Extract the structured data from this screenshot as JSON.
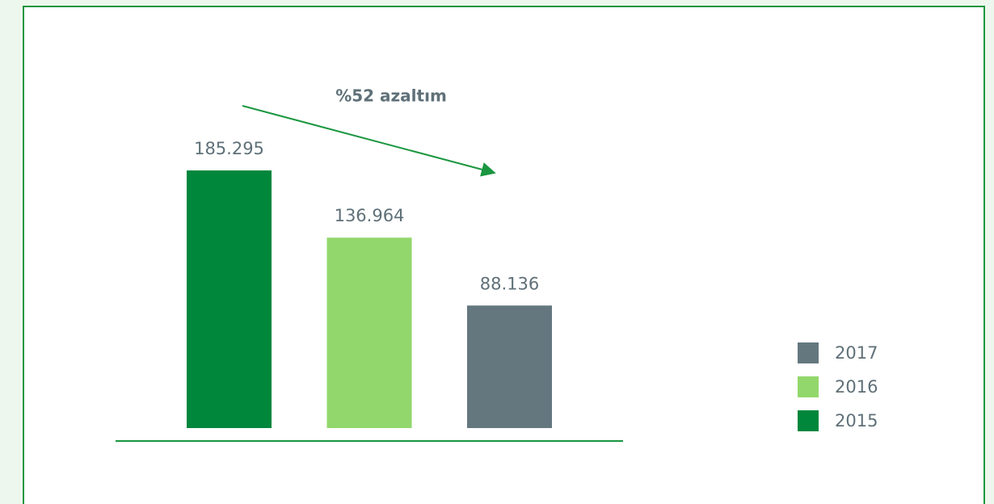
{
  "chart_data": {
    "type": "bar",
    "categories": [
      "2015",
      "2016",
      "2017"
    ],
    "values": [
      185295,
      136964,
      88136
    ],
    "value_labels": [
      "185.295",
      "136.964",
      "88.136"
    ],
    "colors": [
      "#00873c",
      "#92d76b",
      "#64777f"
    ],
    "annotation": "%52 azaltım"
  }
}
